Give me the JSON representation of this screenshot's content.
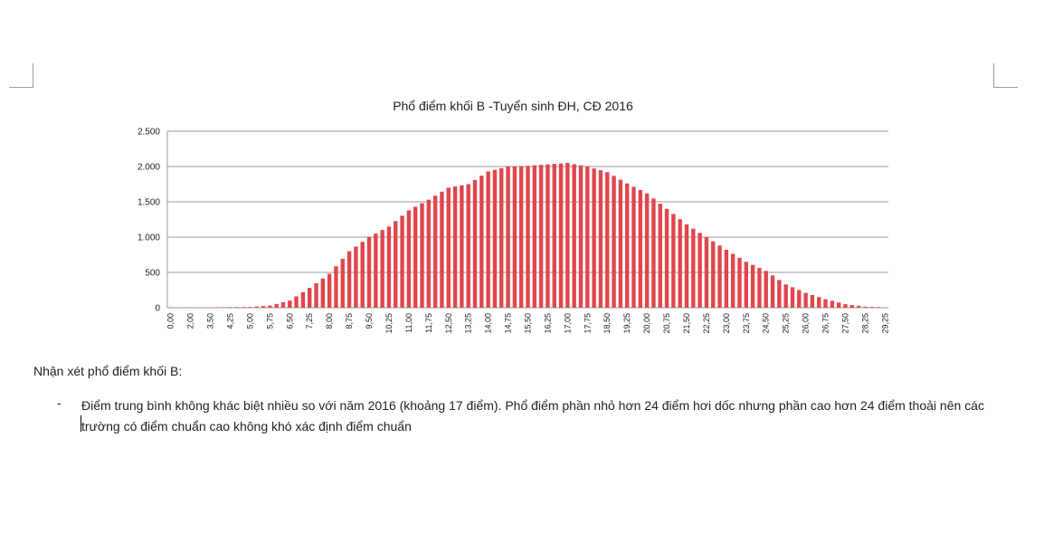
{
  "chart_data": {
    "type": "bar",
    "title": "Phổ điểm khối B -Tuyển sinh ĐH, CĐ 2016",
    "categories": [
      "0,00",
      null,
      null,
      "2,00",
      null,
      null,
      "3,50",
      null,
      null,
      "4,25",
      null,
      null,
      "5,00",
      null,
      null,
      "5,75",
      null,
      null,
      "6,50",
      null,
      null,
      "7,25",
      null,
      null,
      "8,00",
      null,
      null,
      "8,75",
      null,
      null,
      "9,50",
      null,
      null,
      "10,25",
      null,
      null,
      "11,00",
      null,
      null,
      "11,75",
      null,
      null,
      "12,50",
      null,
      null,
      "13,25",
      null,
      null,
      "14,00",
      null,
      null,
      "14,75",
      null,
      null,
      "15,50",
      null,
      null,
      "16,25",
      null,
      null,
      "17,00",
      null,
      null,
      "17,75",
      null,
      null,
      "18,50",
      null,
      null,
      "19,25",
      null,
      null,
      "20,00",
      null,
      null,
      "20,75",
      null,
      null,
      "21,50",
      null,
      null,
      "22,25",
      null,
      null,
      "23,00",
      null,
      null,
      "23,75",
      null,
      null,
      "24,50",
      null,
      null,
      "25,25",
      null,
      null,
      "26,00",
      null,
      null,
      "26,75",
      null,
      null,
      "27,50",
      null,
      null,
      "28,25",
      null,
      null,
      "29,25"
    ],
    "values": [
      5,
      5,
      5,
      5,
      5,
      5,
      5,
      6,
      7,
      8,
      9,
      9,
      10,
      17,
      23,
      30,
      53,
      77,
      100,
      160,
      220,
      280,
      347,
      413,
      480,
      587,
      693,
      800,
      867,
      933,
      1000,
      1050,
      1100,
      1150,
      1227,
      1303,
      1380,
      1430,
      1480,
      1530,
      1587,
      1643,
      1700,
      1717,
      1733,
      1750,
      1810,
      1870,
      1930,
      1953,
      1977,
      2000,
      2003,
      2007,
      2010,
      2017,
      2023,
      2030,
      2037,
      2043,
      2050,
      2033,
      2017,
      2000,
      1973,
      1947,
      1920,
      1867,
      1813,
      1760,
      1713,
      1667,
      1620,
      1547,
      1473,
      1400,
      1327,
      1253,
      1180,
      1120,
      1060,
      1000,
      940,
      880,
      820,
      763,
      707,
      650,
      607,
      563,
      520,
      457,
      393,
      330,
      290,
      250,
      210,
      180,
      150,
      120,
      97,
      73,
      50,
      38,
      27,
      15,
      11,
      8,
      5
    ],
    "color": "#e0464c",
    "ylim": [
      0,
      2500
    ],
    "yticks": [
      0,
      500,
      {
        "value": 1000,
        "label": "1.000"
      },
      {
        "value": 1500,
        "label": "1.500"
      },
      {
        "value": 2000,
        "label": "2.000"
      },
      {
        "value": 2500,
        "label": "2.500"
      }
    ],
    "grid": true
  },
  "document": {
    "heading": "Nhận xét phổ điểm khối B:",
    "bullets": [
      "Điểm trung bình không khác biệt nhiều so với năm 2016 (khoảng 17 điểm). Phổ điểm phần nhỏ hơn 24 điểm hơi dốc nhưng phần cao hơn 24 điểm thoải nên các trường có điểm chuẩn cao không khó xác định điểm chuẩn"
    ]
  }
}
